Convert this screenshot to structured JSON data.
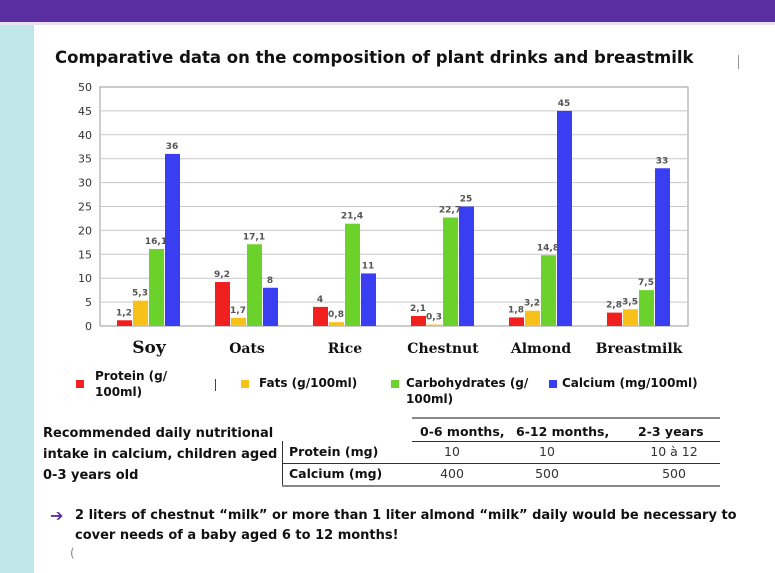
{
  "title": "Comparative data on the composition of plant drinks and breastmilk",
  "chart_data": {
    "type": "bar",
    "categories": [
      "Soy",
      "Oats",
      "Rice",
      "Chestnut",
      "Almond",
      "Breastmilk"
    ],
    "series": [
      {
        "name": "Protein (g/ 100ml)",
        "color": "#f21f1f",
        "values": [
          1.2,
          9.2,
          4,
          2.1,
          1.8,
          2.8
        ],
        "labels": [
          "1,2",
          "9,2",
          "4",
          "2,1",
          "1,8",
          "2,8"
        ]
      },
      {
        "name": "Fats (g/100ml)",
        "color": "#f7c11a",
        "values": [
          5.3,
          1.7,
          0.8,
          0.3,
          3.2,
          3.5
        ],
        "labels": [
          "5,3",
          "1,7",
          "0,8",
          "0,3",
          "3,2",
          "3,5"
        ]
      },
      {
        "name": "Carbohydrates (g/ 100ml)",
        "color": "#6bd12b",
        "values": [
          16.1,
          17.1,
          21.4,
          22.7,
          14.8,
          7.5
        ],
        "labels": [
          "16,1",
          "17,1",
          "21,4",
          "22,7",
          "14,8",
          "7,5"
        ]
      },
      {
        "name": "Calcium (mg/100ml)",
        "color": "#3a3ef2",
        "values": [
          36,
          8,
          11,
          25,
          45,
          33
        ],
        "labels": [
          "36",
          "8",
          "11",
          "25",
          "45",
          "33"
        ]
      }
    ],
    "ylim": [
      0,
      50
    ],
    "yticks": [
      "0",
      "5",
      "10",
      "15",
      "20",
      "25",
      "30",
      "35",
      "40",
      "45",
      "50"
    ],
    "grid": true,
    "legend": "bottom"
  },
  "recommend": {
    "label": "Recommended daily nutritional intake in calcium, children aged 0-3 years old",
    "headers": [
      "0-6 months,",
      "6-12 months,",
      "2-3 years"
    ],
    "rows": [
      {
        "label": "Protein (mg)",
        "values": [
          "10",
          "10",
          "10 à 12"
        ]
      },
      {
        "label": "Calcium (mg)",
        "values": [
          "400",
          "500",
          "500"
        ]
      }
    ]
  },
  "note": "2 liters of chestnut “milk” or more than 1 liter almond “milk” daily would be necessary to cover needs of a baby aged 6 to 12 months!",
  "note_icon": "arrow-icon"
}
